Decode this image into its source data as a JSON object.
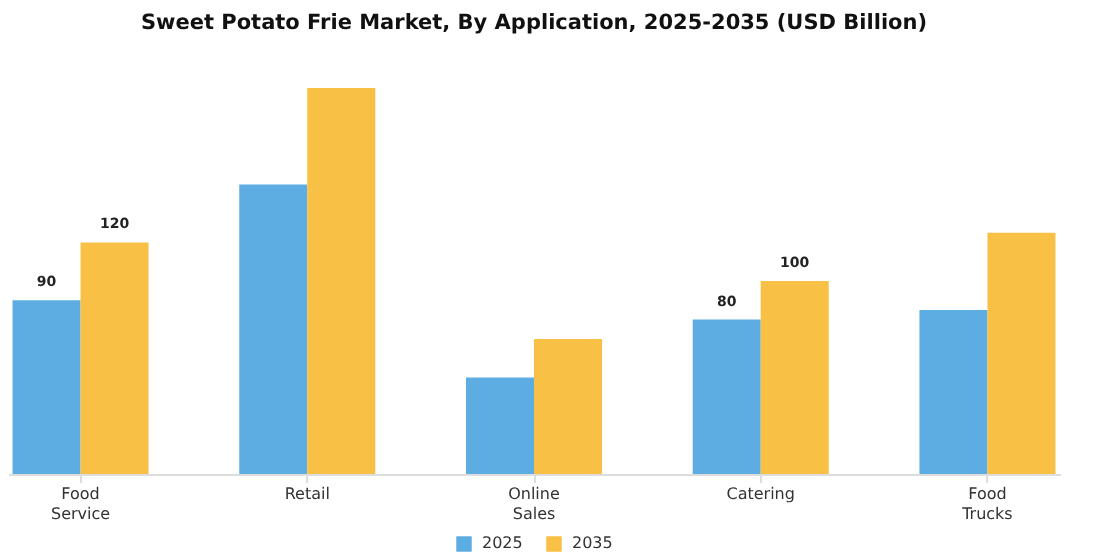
{
  "chart_data": {
    "type": "bar",
    "title": "Sweet Potato Frie Market, By Application, 2025-2035 (USD Billion)",
    "categories": [
      "Food Service",
      "Retail",
      "Online Sales",
      "Catering",
      "Food Trucks"
    ],
    "series": [
      {
        "name": "2025",
        "color": "#5dade2",
        "values": [
          90,
          150,
          50,
          80,
          85
        ],
        "value_labels": [
          "90",
          null,
          null,
          "80",
          null
        ]
      },
      {
        "name": "2035",
        "color": "#f8c146",
        "values": [
          120,
          200,
          70,
          100,
          125
        ],
        "value_labels": [
          "120",
          null,
          null,
          "100",
          null
        ]
      }
    ],
    "legend": "bottom"
  }
}
